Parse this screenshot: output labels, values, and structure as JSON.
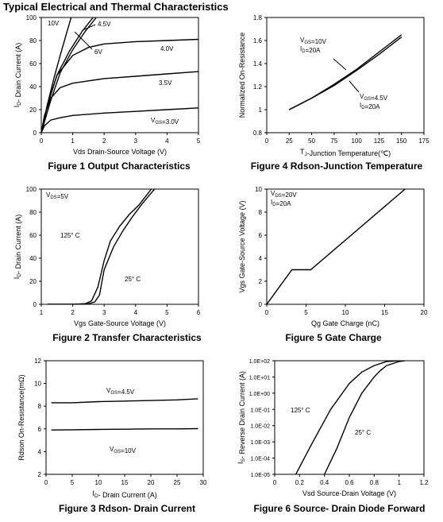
{
  "page_title": "Typical Electrical and Thermal Characteristics",
  "chart_data": [
    {
      "id": "fig1",
      "type": "line",
      "title": "Figure 1 Output Characteristics",
      "xlabel": "Vds Drain-Source Voltage (V)",
      "ylabel": "I_D- Drain Current (A)",
      "xlim": [
        0,
        5
      ],
      "ylim": [
        0,
        100
      ],
      "xticks": [
        "0",
        "1",
        "2",
        "3",
        "4",
        "5"
      ],
      "yticks": [
        "0",
        "20",
        "40",
        "60",
        "80",
        "100"
      ],
      "grid": false,
      "series": [
        {
          "name": "10V",
          "x": [
            0,
            0.2,
            0.4,
            0.6,
            0.8,
            0.95
          ],
          "y": [
            0,
            25,
            47,
            67,
            86,
            100
          ]
        },
        {
          "name": "4.5V",
          "x": [
            0,
            0.3,
            0.6,
            1.0,
            1.4,
            1.75
          ],
          "y": [
            0,
            28,
            52,
            72,
            88,
            100
          ]
        },
        {
          "name": "6V",
          "x": [
            0,
            0.2,
            0.5,
            0.9,
            1.3,
            1.65
          ],
          "y": [
            0,
            24,
            50,
            71,
            88,
            100
          ]
        },
        {
          "name": "4.0V",
          "x": [
            0,
            0.2,
            0.5,
            1.0,
            1.5,
            2.0,
            3.0,
            4.0,
            5.0
          ],
          "y": [
            0,
            25,
            50,
            67,
            74,
            77,
            79,
            80,
            81
          ]
        },
        {
          "name": "3.5V",
          "x": [
            0,
            0.1,
            0.3,
            0.6,
            1.0,
            1.5,
            2.0,
            3.0,
            4.0,
            5.0
          ],
          "y": [
            0,
            15,
            30,
            39,
            43,
            45,
            47,
            49,
            51,
            53
          ]
        },
        {
          "name": "V_GS=3.0V",
          "x": [
            0,
            0.1,
            0.3,
            0.6,
            1.0,
            2.0,
            3.0,
            4.0,
            5.0
          ],
          "y": [
            0,
            6,
            11,
            13,
            15,
            17,
            18.5,
            20,
            21.5
          ]
        }
      ],
      "labels": [
        "10V",
        "4.5V",
        "6V",
        "4.0V",
        "3.5V",
        "V_GS=3.0V"
      ]
    },
    {
      "id": "fig4",
      "type": "line",
      "title": "Figure 4 Rdson-Junction Temperature",
      "xlabel": "T_J-Junction Temperature(℃)",
      "ylabel": "Normalized On-Resistance",
      "xlim": [
        0,
        175
      ],
      "ylim": [
        0.8,
        1.8
      ],
      "xticks": [
        "0",
        "25",
        "50",
        "75",
        "100",
        "125",
        "150",
        "175"
      ],
      "yticks": [
        "0.8",
        "1",
        "1.2",
        "1.4",
        "1.6",
        "1.8"
      ],
      "grid": false,
      "series": [
        {
          "name": "V_GS=10V I_D=20A",
          "x": [
            25,
            50,
            75,
            100,
            125,
            150
          ],
          "y": [
            1.0,
            1.1,
            1.22,
            1.35,
            1.5,
            1.65
          ]
        },
        {
          "name": "V_GS=4.5V I_D=20A",
          "x": [
            25,
            50,
            75,
            100,
            125,
            150
          ],
          "y": [
            1.0,
            1.1,
            1.21,
            1.34,
            1.48,
            1.63
          ]
        }
      ],
      "annotations": [
        [
          "V_GS=10V",
          "I_D=20A"
        ],
        [
          "V_GS=4.5V",
          "I_D=20A"
        ]
      ]
    },
    {
      "id": "fig2",
      "type": "line",
      "title": "Figure 2 Transfer Characteristics",
      "xlabel": "Vgs Gate-Source Voltage (V)",
      "ylabel": "I_D- Drain Current (A)",
      "xlim": [
        1,
        6
      ],
      "ylim": [
        0,
        100
      ],
      "xticks": [
        "1",
        "2",
        "3",
        "4",
        "5",
        "6"
      ],
      "yticks": [
        "0",
        "20",
        "40",
        "60",
        "80",
        "100"
      ],
      "grid": false,
      "series": [
        {
          "name": "125° C",
          "x": [
            1.2,
            2.0,
            2.4,
            2.6,
            2.8,
            3.0,
            3.2,
            3.5,
            3.8,
            4.1,
            4.5
          ],
          "y": [
            0,
            0,
            0.5,
            3,
            15,
            38,
            55,
            68,
            78,
            86,
            100
          ]
        },
        {
          "name": "25° C",
          "x": [
            1.2,
            2.0,
            2.5,
            2.7,
            2.85,
            3.0,
            3.3,
            3.6,
            3.9,
            4.2,
            4.6
          ],
          "y": [
            0,
            0,
            0.5,
            2,
            8,
            30,
            50,
            64,
            76,
            87,
            100
          ]
        }
      ],
      "annotations": [
        "V_DS=5V",
        "125° C",
        "25° C"
      ]
    },
    {
      "id": "fig5",
      "type": "line",
      "title": "Figure 5 Gate Charge",
      "xlabel": "Qg Gate Charge (nC)",
      "ylabel": "Vgs Gate-Source Voltage (V)",
      "xlim": [
        0,
        20
      ],
      "ylim": [
        0,
        10
      ],
      "xticks": [
        "0",
        "5",
        "10",
        "15",
        "20"
      ],
      "yticks": [
        "0",
        "2",
        "4",
        "6",
        "8",
        "10"
      ],
      "grid": false,
      "series": [
        {
          "name": "V_DS=20V I_D=20A",
          "x": [
            0,
            3.2,
            5.6,
            17.6
          ],
          "y": [
            0,
            3.0,
            3.0,
            10.0
          ]
        }
      ],
      "annotations": [
        "V_DS=20V",
        "I_D=20A"
      ]
    },
    {
      "id": "fig3",
      "type": "line",
      "title": "Figure 3 Rdson- Drain Current",
      "xlabel": "I_D- Drain Current (A)",
      "ylabel": "Rdson On-Resistance(mΩ)",
      "xlim": [
        0,
        30
      ],
      "ylim": [
        2,
        12
      ],
      "xticks": [
        "0",
        "5",
        "10",
        "15",
        "20",
        "25",
        "30"
      ],
      "yticks": [
        "2",
        "4",
        "6",
        "8",
        "10",
        "12"
      ],
      "grid": false,
      "series": [
        {
          "name": "V_GS=4.5V",
          "x": [
            1,
            5,
            10,
            15,
            20,
            25,
            29
          ],
          "y": [
            8.3,
            8.3,
            8.4,
            8.45,
            8.5,
            8.55,
            8.65
          ]
        },
        {
          "name": "V_GS=10V",
          "x": [
            1,
            5,
            10,
            15,
            20,
            25,
            29
          ],
          "y": [
            5.9,
            5.92,
            5.95,
            5.97,
            6.0,
            6.0,
            6.02
          ]
        }
      ],
      "annotations": [
        "V_GS=4.5V",
        "V_GS=10V"
      ]
    },
    {
      "id": "fig6",
      "type": "line",
      "title": "Figure 6 Source- Drain Diode Forward",
      "xlabel": "Vsd Source-Drain Voltage (V)",
      "ylabel": "I_S- Reverse Drain Current (A)",
      "xlim": [
        0,
        1.2
      ],
      "ylim_log10": [
        -5,
        2
      ],
      "yscale": "log",
      "xticks": [
        "0",
        "0.2",
        "0.4",
        "0.6",
        "0.8",
        "1",
        "1.2"
      ],
      "yticks": [
        "1.0E-05",
        "1.0E-04",
        "1.0E-03",
        "1.0E-02",
        "1.0E-01",
        "1.0E+00",
        "1.0E+01",
        "1.0E+02"
      ],
      "grid": false,
      "series": [
        {
          "name": "125° C",
          "x": [
            0.17,
            0.3,
            0.45,
            0.6,
            0.7,
            0.8,
            0.9,
            1.0
          ],
          "log10_y": [
            -5,
            -3.1,
            -1.0,
            0.6,
            1.3,
            1.7,
            1.95,
            2.0
          ]
        },
        {
          "name": "25° C",
          "x": [
            0.4,
            0.5,
            0.6,
            0.7,
            0.8,
            0.85,
            0.9,
            1.0,
            1.05
          ],
          "log10_y": [
            -5,
            -3.4,
            -1.5,
            0.0,
            1.0,
            1.4,
            1.7,
            1.95,
            2.0
          ]
        }
      ],
      "annotations": [
        "125° C",
        "25° C"
      ]
    }
  ]
}
